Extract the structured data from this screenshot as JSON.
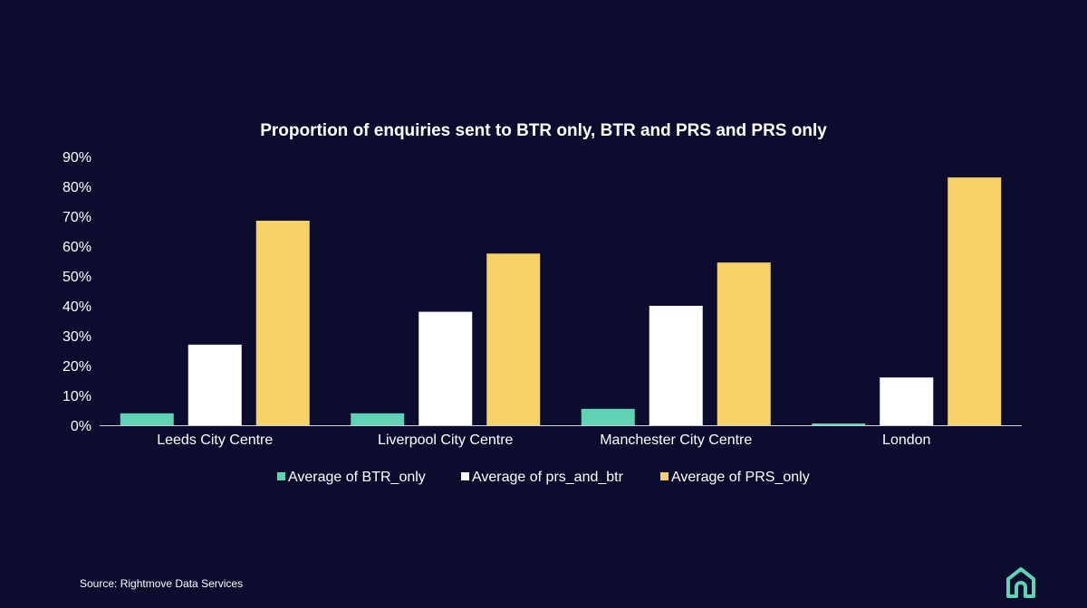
{
  "chart_data": {
    "type": "bar",
    "title": "Proportion of enquiries sent to BTR only, BTR and PRS and PRS only",
    "categories": [
      "Leeds City Centre",
      "Liverpool City Centre",
      "Manchester City Centre",
      "London"
    ],
    "series": [
      {
        "name": "Average of BTR_only",
        "color": "#5fd3b4",
        "values": [
          4,
          4,
          5.5,
          0.6
        ]
      },
      {
        "name": "Average of prs_and_btr",
        "color": "#ffffff",
        "values": [
          27,
          38,
          40,
          16
        ]
      },
      {
        "name": "Average of PRS_only",
        "color": "#f5d168",
        "values": [
          68.5,
          57.5,
          54.5,
          83
        ]
      }
    ],
    "y_ticks": [
      "0%",
      "10%",
      "20%",
      "30%",
      "40%",
      "50%",
      "60%",
      "70%",
      "80%",
      "90%"
    ],
    "ylim": [
      0,
      90
    ],
    "xlabel": "",
    "ylabel": "",
    "legend_position": "bottom-center",
    "grid": false
  },
  "footer": {
    "source": "Source: Rightmove Data Services"
  },
  "brand": {
    "logo_icon": "house-logo-icon",
    "logo_color": "#5fd3b4"
  }
}
